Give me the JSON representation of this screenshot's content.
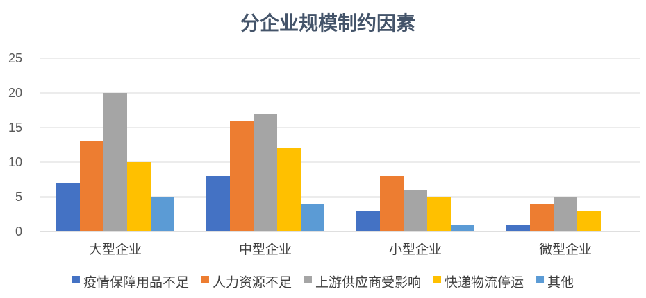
{
  "chart_data": {
    "type": "bar",
    "title": "分企业规模制约因素",
    "categories": [
      "大型企业",
      "中型企业",
      "小型企业",
      "微型企业"
    ],
    "series": [
      {
        "name": "疫情保障用品不足",
        "color": "#4472C4",
        "values": [
          7,
          8,
          3,
          1
        ]
      },
      {
        "name": "人力资源不足",
        "color": "#ED7D31",
        "values": [
          13,
          16,
          8,
          4
        ]
      },
      {
        "name": "上游供应商受影响",
        "color": "#A5A5A5",
        "values": [
          20,
          17,
          6,
          5
        ]
      },
      {
        "name": "快递物流停运",
        "color": "#FFC000",
        "values": [
          10,
          12,
          5,
          3
        ]
      },
      {
        "name": "其他",
        "color": "#5B9BD5",
        "values": [
          5,
          4,
          1,
          0
        ]
      }
    ],
    "ylim": [
      0,
      25
    ],
    "yticks": [
      0,
      5,
      10,
      15,
      20,
      25
    ],
    "grid": true,
    "legend_position": "bottom"
  }
}
